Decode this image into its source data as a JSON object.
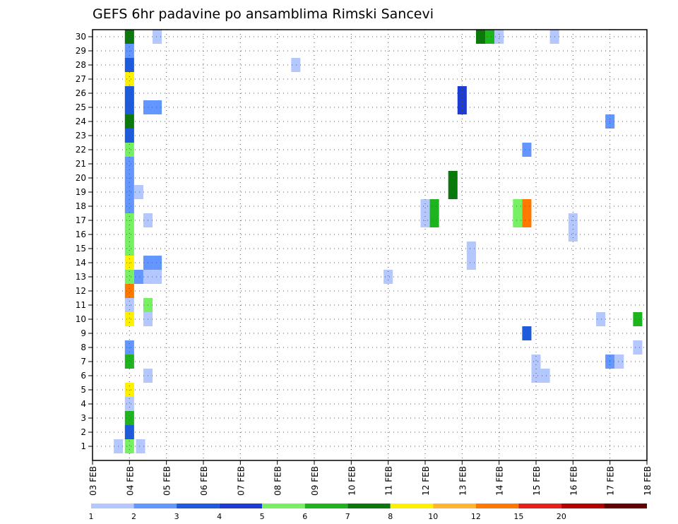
{
  "chart_data": {
    "type": "heatmap",
    "title": "GEFS 6hr padavine po ansamblima Rimski Sancevi",
    "xlabel": "",
    "ylabel": "",
    "x_tick_labels": [
      "03 FEB",
      "04 FEB",
      "05 FEB",
      "06 FEB",
      "07 FEB",
      "08 FEB",
      "09 FEB",
      "10 FEB",
      "11 FEB",
      "12 FEB",
      "13 FEB",
      "14 FEB",
      "15 FEB",
      "16 FEB",
      "17 FEB",
      "18 FEB"
    ],
    "y_tick_labels": [
      "1",
      "2",
      "3",
      "4",
      "5",
      "6",
      "7",
      "8",
      "9",
      "10",
      "11",
      "12",
      "13",
      "14",
      "15",
      "16",
      "17",
      "18",
      "19",
      "20",
      "21",
      "22",
      "23",
      "24",
      "25",
      "26",
      "27",
      "28",
      "29",
      "30"
    ],
    "grid": true,
    "colorbar": {
      "labels": [
        "1",
        "2",
        "3",
        "4",
        "5",
        "6",
        "7",
        "8",
        "10",
        "12",
        "15",
        "20"
      ],
      "colors": [
        "#b4c8ff",
        "#6496ff",
        "#1e5adc",
        "#1e3cd2",
        "#78f064",
        "#1eb41e",
        "#0a780a",
        "#fff000",
        "#ffb432",
        "#ff7800",
        "#e61e1e",
        "#b40000",
        "#640000"
      ]
    },
    "cells": [
      {
        "m": 1,
        "x": 0.7,
        "v": 1
      },
      {
        "m": 1,
        "x": 1,
        "v": 5
      },
      {
        "m": 1,
        "x": 1.3,
        "v": 1
      },
      {
        "m": 2,
        "x": 1,
        "v": 3
      },
      {
        "m": 3,
        "x": 1,
        "v": 6
      },
      {
        "m": 4,
        "x": 1,
        "v": 1
      },
      {
        "m": 5,
        "x": 1,
        "v": 8
      },
      {
        "m": 6,
        "x": 1.5,
        "v": 1
      },
      {
        "m": 7,
        "x": 1,
        "v": 6
      },
      {
        "m": 8,
        "x": 1,
        "v": 2
      },
      {
        "m": 10,
        "x": 1,
        "v": 8
      },
      {
        "m": 10,
        "x": 1.5,
        "v": 1
      },
      {
        "m": 11,
        "x": 1,
        "v": 1
      },
      {
        "m": 11,
        "x": 1.5,
        "v": 5
      },
      {
        "m": 12,
        "x": 1,
        "v": 10
      },
      {
        "m": 13,
        "x": 1,
        "v": 5
      },
      {
        "m": 13,
        "x": 1.25,
        "v": 2
      },
      {
        "m": 13,
        "x": 1.5,
        "v": 1
      },
      {
        "m": 13,
        "x": 1.75,
        "v": 1
      },
      {
        "m": 14,
        "x": 1,
        "v": 8
      },
      {
        "m": 14,
        "x": 1.5,
        "v": 2
      },
      {
        "m": 14,
        "x": 1.75,
        "v": 2
      },
      {
        "m": 15,
        "x": 1,
        "v": 5
      },
      {
        "m": 16,
        "x": 1,
        "v": 5
      },
      {
        "m": 17,
        "x": 1,
        "v": 5
      },
      {
        "m": 17,
        "x": 1.5,
        "v": 1
      },
      {
        "m": 18,
        "x": 1,
        "v": 2
      },
      {
        "m": 19,
        "x": 1,
        "v": 2
      },
      {
        "m": 19,
        "x": 1.25,
        "v": 1
      },
      {
        "m": 20,
        "x": 1,
        "v": 2
      },
      {
        "m": 21,
        "x": 1,
        "v": 2
      },
      {
        "m": 22,
        "x": 1,
        "v": 5
      },
      {
        "m": 23,
        "x": 1,
        "v": 3
      },
      {
        "m": 24,
        "x": 1,
        "v": 7
      },
      {
        "m": 25,
        "x": 1,
        "v": 3
      },
      {
        "m": 25,
        "x": 1.5,
        "v": 2
      },
      {
        "m": 25,
        "x": 1.75,
        "v": 2
      },
      {
        "m": 26,
        "x": 1,
        "v": 3
      },
      {
        "m": 27,
        "x": 1,
        "v": 8
      },
      {
        "m": 28,
        "x": 1,
        "v": 3
      },
      {
        "m": 29,
        "x": 1,
        "v": 2
      },
      {
        "m": 30,
        "x": 1,
        "v": 7
      },
      {
        "m": 30,
        "x": 1.75,
        "v": 1
      },
      {
        "m": 28,
        "x": 5.5,
        "v": 1
      },
      {
        "m": 13,
        "x": 8,
        "v": 1
      },
      {
        "m": 17,
        "x": 9,
        "v": 1
      },
      {
        "m": 18,
        "x": 9,
        "v": 1
      },
      {
        "m": 17,
        "x": 9.25,
        "v": 6
      },
      {
        "m": 18,
        "x": 9.25,
        "v": 6
      },
      {
        "m": 19,
        "x": 9.75,
        "v": 7
      },
      {
        "m": 20,
        "x": 9.75,
        "v": 7
      },
      {
        "m": 25,
        "x": 10,
        "v": 4
      },
      {
        "m": 26,
        "x": 10,
        "v": 4
      },
      {
        "m": 14,
        "x": 10.25,
        "v": 1
      },
      {
        "m": 15,
        "x": 10.25,
        "v": 1
      },
      {
        "m": 30,
        "x": 10.5,
        "v": 7
      },
      {
        "m": 30,
        "x": 10.75,
        "v": 6
      },
      {
        "m": 30,
        "x": 11,
        "v": 1
      },
      {
        "m": 17,
        "x": 11.5,
        "v": 5
      },
      {
        "m": 18,
        "x": 11.5,
        "v": 5
      },
      {
        "m": 17,
        "x": 11.75,
        "v": 10
      },
      {
        "m": 18,
        "x": 11.75,
        "v": 10
      },
      {
        "m": 22,
        "x": 11.75,
        "v": 2
      },
      {
        "m": 9,
        "x": 11.75,
        "v": 3
      },
      {
        "m": 7,
        "x": 12,
        "v": 1
      },
      {
        "m": 6,
        "x": 12,
        "v": 1
      },
      {
        "m": 6,
        "x": 12.25,
        "v": 1
      },
      {
        "m": 30,
        "x": 12.5,
        "v": 1
      },
      {
        "m": 16,
        "x": 13,
        "v": 1
      },
      {
        "m": 17,
        "x": 13,
        "v": 1
      },
      {
        "m": 10,
        "x": 13.75,
        "v": 1
      },
      {
        "m": 24,
        "x": 14,
        "v": 2
      },
      {
        "m": 7,
        "x": 14,
        "v": 2
      },
      {
        "m": 7,
        "x": 14.25,
        "v": 1
      },
      {
        "m": 10,
        "x": 14.75,
        "v": 6
      },
      {
        "m": 8,
        "x": 14.75,
        "v": 1
      }
    ]
  }
}
